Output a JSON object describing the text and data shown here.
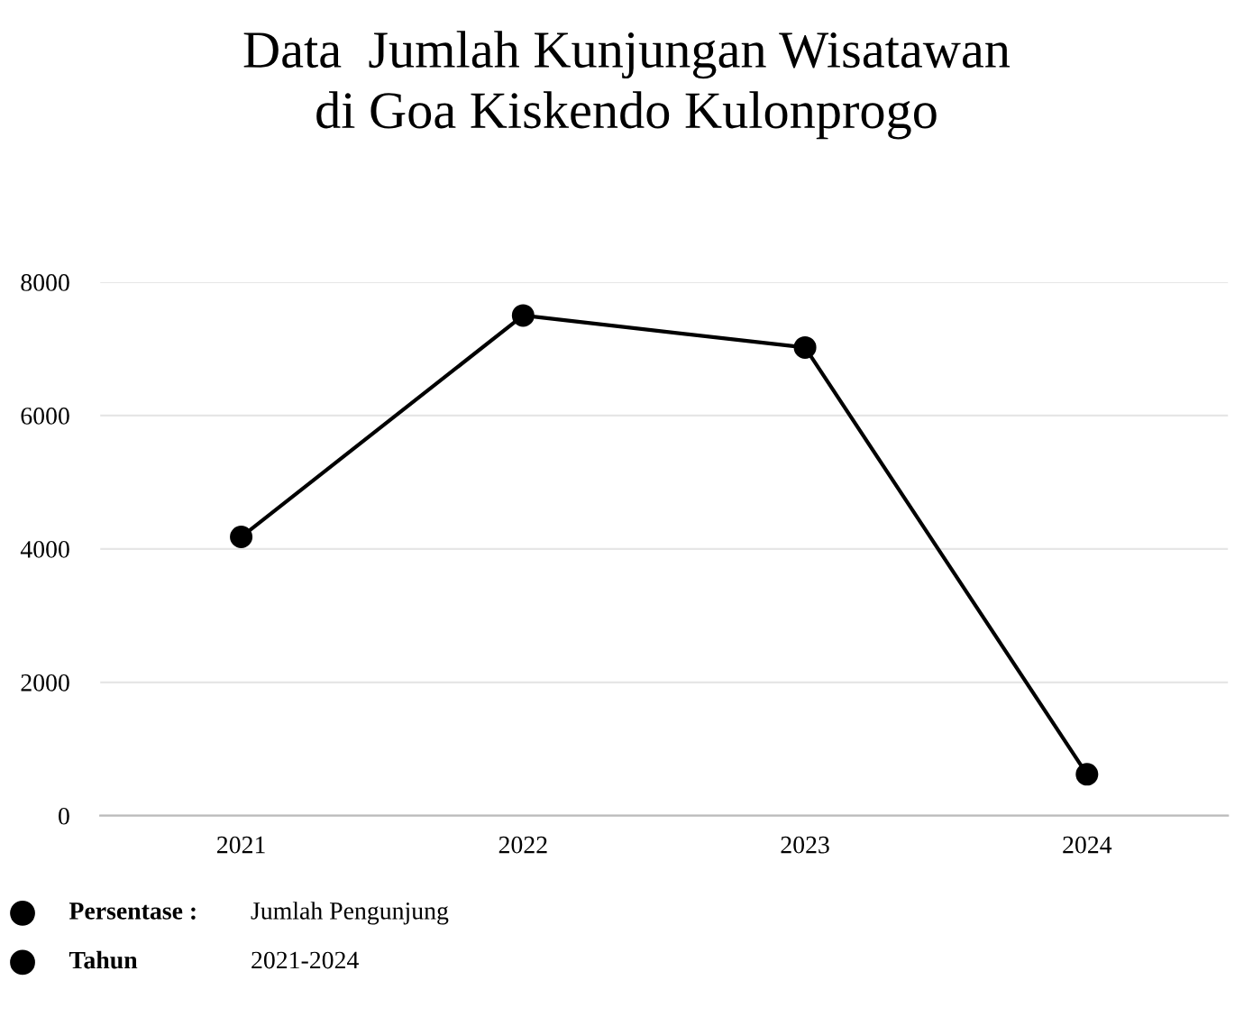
{
  "chart_data": {
    "type": "line",
    "title": "Data  Jumlah Kunjungan Wisatawan\ndi Goa Kiskendo Kulonprogo",
    "categories": [
      "2021",
      "2022",
      "2023",
      "2024"
    ],
    "series": [
      {
        "color": "#000000",
        "values": [
          4180,
          7500,
          7020,
          620
        ]
      }
    ],
    "ylim": [
      0,
      8000
    ],
    "yticks": [
      0,
      2000,
      4000,
      6000,
      8000
    ],
    "grid": "y",
    "marker": "circle",
    "line_style": "solid",
    "annotations": [
      "Persentase :",
      "Jumlah Pengunjung",
      "Tahun",
      "2021-2024"
    ]
  }
}
